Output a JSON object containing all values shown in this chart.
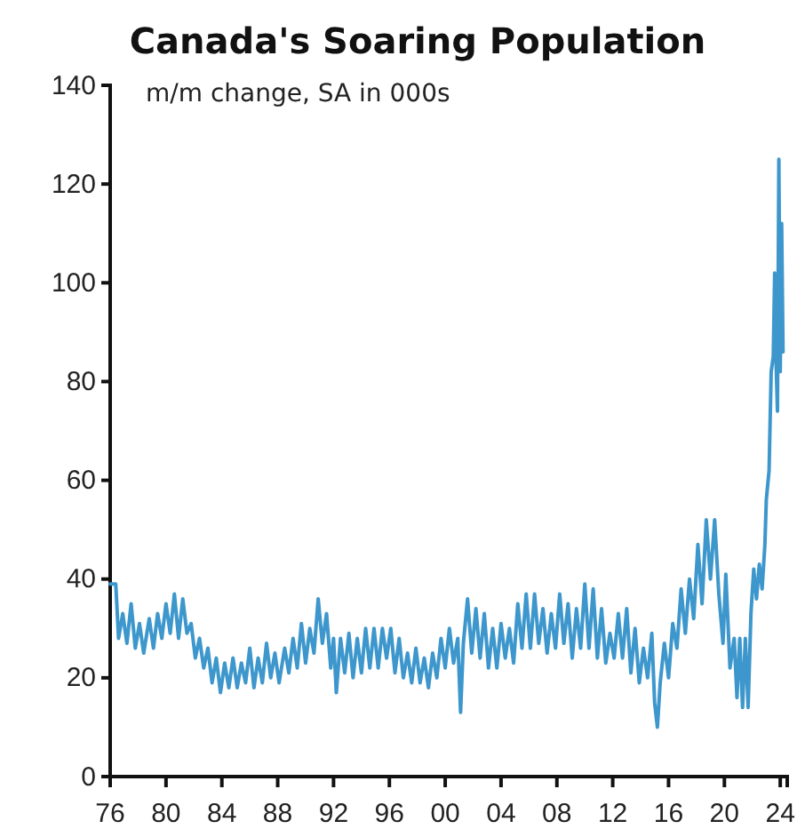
{
  "chart_data": {
    "type": "line",
    "title": "Canada's Soaring Population",
    "subtitle": "m/m change, SA in 000s",
    "x": [
      1976.0,
      1976.4,
      1976.6,
      1976.9,
      1977.2,
      1977.5,
      1977.8,
      1978.1,
      1978.4,
      1978.8,
      1979.1,
      1979.4,
      1979.7,
      1980.0,
      1980.3,
      1980.6,
      1980.9,
      1981.2,
      1981.5,
      1981.8,
      1982.1,
      1982.4,
      1982.7,
      1983.0,
      1983.3,
      1983.6,
      1983.9,
      1984.2,
      1984.5,
      1984.8,
      1985.1,
      1985.4,
      1985.7,
      1986.0,
      1986.3,
      1986.6,
      1986.9,
      1987.2,
      1987.5,
      1987.8,
      1988.1,
      1988.5,
      1988.8,
      1989.1,
      1989.4,
      1989.7,
      1990.0,
      1990.3,
      1990.6,
      1990.9,
      1991.2,
      1991.5,
      1991.8,
      1992.0,
      1992.2,
      1992.5,
      1992.8,
      1993.1,
      1993.4,
      1993.7,
      1994.0,
      1994.3,
      1994.6,
      1994.9,
      1995.2,
      1995.5,
      1995.8,
      1996.1,
      1996.4,
      1996.7,
      1997.0,
      1997.3,
      1997.6,
      1997.9,
      1998.2,
      1998.5,
      1998.8,
      1999.1,
      1999.4,
      1999.7,
      2000.0,
      2000.3,
      2000.6,
      2000.9,
      2001.1,
      2001.3,
      2001.6,
      2001.9,
      2002.2,
      2002.5,
      2002.8,
      2003.1,
      2003.4,
      2003.7,
      2004.0,
      2004.3,
      2004.6,
      2004.9,
      2005.2,
      2005.5,
      2005.8,
      2006.1,
      2006.4,
      2006.7,
      2007.0,
      2007.3,
      2007.6,
      2007.9,
      2008.2,
      2008.5,
      2008.8,
      2009.1,
      2009.4,
      2009.7,
      2010.0,
      2010.3,
      2010.6,
      2010.9,
      2011.2,
      2011.5,
      2011.8,
      2012.1,
      2012.4,
      2012.7,
      2013.0,
      2013.3,
      2013.6,
      2013.9,
      2014.2,
      2014.5,
      2014.8,
      2015.0,
      2015.2,
      2015.4,
      2015.7,
      2016.0,
      2016.3,
      2016.6,
      2016.9,
      2017.2,
      2017.5,
      2017.8,
      2018.1,
      2018.4,
      2018.7,
      2019.0,
      2019.3,
      2019.6,
      2019.9,
      2020.1,
      2020.4,
      2020.7,
      2020.9,
      2021.1,
      2021.3,
      2021.5,
      2021.7,
      2021.9,
      2022.1,
      2022.3,
      2022.5,
      2022.7,
      2022.9,
      2023.0,
      2023.2,
      2023.35,
      2023.5,
      2023.6,
      2023.7,
      2023.8,
      2023.9,
      2024.0,
      2024.1,
      2024.2
    ],
    "series": [
      {
        "color": "#3d97cc",
        "values": [
          39,
          39,
          28,
          33,
          27,
          35,
          26,
          31,
          25,
          32,
          26,
          33,
          28,
          35,
          29,
          37,
          28,
          36,
          29,
          31,
          24,
          28,
          22,
          26,
          19,
          24,
          17,
          23,
          18,
          24,
          18,
          23,
          19,
          26,
          18,
          24,
          19,
          27,
          20,
          25,
          19,
          26,
          21,
          28,
          22,
          31,
          23,
          30,
          25,
          36,
          27,
          33,
          22,
          28,
          17,
          28,
          21,
          29,
          20,
          28,
          21,
          30,
          22,
          30,
          22,
          30,
          24,
          30,
          21,
          28,
          20,
          25,
          19,
          26,
          19,
          24,
          18,
          25,
          20,
          28,
          22,
          30,
          23,
          28,
          13,
          27,
          36,
          25,
          34,
          24,
          33,
          22,
          30,
          22,
          31,
          24,
          30,
          23,
          35,
          26,
          37,
          26,
          37,
          27,
          34,
          25,
          33,
          26,
          37,
          27,
          35,
          24,
          34,
          26,
          39,
          26,
          38,
          24,
          34,
          23,
          29,
          24,
          33,
          24,
          34,
          21,
          30,
          19,
          26,
          20,
          29,
          15,
          10,
          19,
          27,
          20,
          31,
          26,
          38,
          29,
          40,
          32,
          47,
          35,
          52,
          40,
          52,
          37,
          27,
          41,
          22,
          28,
          16,
          28,
          14,
          28,
          14,
          33,
          42,
          36,
          43,
          38,
          47,
          56,
          62,
          82,
          85,
          102,
          84,
          74,
          125,
          82,
          112,
          86
        ]
      }
    ],
    "xlim": [
      1976,
      2024.5
    ],
    "ylim": [
      0,
      140
    ],
    "xticks": [
      {
        "value": 1976,
        "label": "76"
      },
      {
        "value": 1980,
        "label": "80"
      },
      {
        "value": 1984,
        "label": "84"
      },
      {
        "value": 1988,
        "label": "88"
      },
      {
        "value": 1992,
        "label": "92"
      },
      {
        "value": 1996,
        "label": "96"
      },
      {
        "value": 2000,
        "label": "00"
      },
      {
        "value": 2004,
        "label": "04"
      },
      {
        "value": 2008,
        "label": "08"
      },
      {
        "value": 2012,
        "label": "12"
      },
      {
        "value": 2016,
        "label": "16"
      },
      {
        "value": 2020,
        "label": "20"
      },
      {
        "value": 2024,
        "label": "24"
      }
    ],
    "yticks": [
      0,
      20,
      40,
      60,
      80,
      100,
      120,
      140
    ],
    "grid": false
  }
}
